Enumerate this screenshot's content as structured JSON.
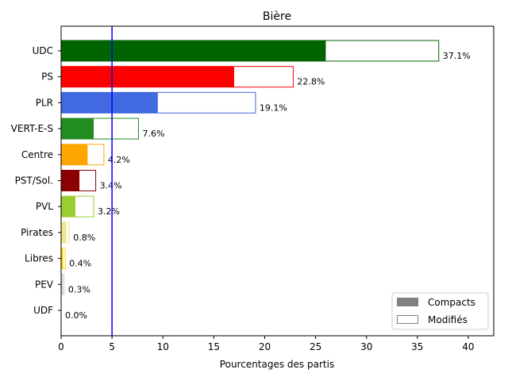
{
  "chart_data": {
    "type": "bar",
    "orientation": "horizontal",
    "title": "Bière",
    "xlabel": "Pourcentages des partis",
    "ylabel": "",
    "xlim": [
      0,
      42.5
    ],
    "xticks": [
      0,
      5,
      10,
      15,
      20,
      25,
      30,
      35,
      40
    ],
    "reference_line": {
      "value": 5,
      "color": "#0000ff"
    },
    "categories": [
      "UDC",
      "PS",
      "PLR",
      "VERT-E-S",
      "Centre",
      "PST/Sol.",
      "PVL",
      "Pirates",
      "Libres",
      "PEV",
      "UDF"
    ],
    "series": [
      {
        "name": "Compacts",
        "values": [
          26.0,
          17.0,
          9.5,
          3.2,
          2.6,
          1.8,
          1.4,
          0.5,
          0.2,
          0.2,
          0.0
        ]
      },
      {
        "name": "Modifiés",
        "values": [
          37.1,
          22.8,
          19.1,
          7.6,
          4.2,
          3.4,
          3.2,
          0.8,
          0.4,
          0.3,
          0.0
        ]
      }
    ],
    "value_labels": [
      "37.1%",
      "22.8%",
      "19.1%",
      "7.6%",
      "4.2%",
      "3.4%",
      "3.2%",
      "0.8%",
      "0.4%",
      "0.3%",
      "0.0%"
    ],
    "colors": [
      "#006400",
      "#ff0000",
      "#4169e1",
      "#228b22",
      "#ffa500",
      "#8b0000",
      "#9acd32",
      "#f0e68c",
      "#ffd700",
      "#d3d3d3",
      "#999999"
    ],
    "legend": {
      "position": "bottom-right",
      "entries": [
        {
          "label": "Compacts",
          "swatch": "#808080",
          "style": "filled"
        },
        {
          "label": "Modifiés",
          "swatch": "#808080",
          "style": "outline"
        }
      ]
    },
    "grid": false
  }
}
